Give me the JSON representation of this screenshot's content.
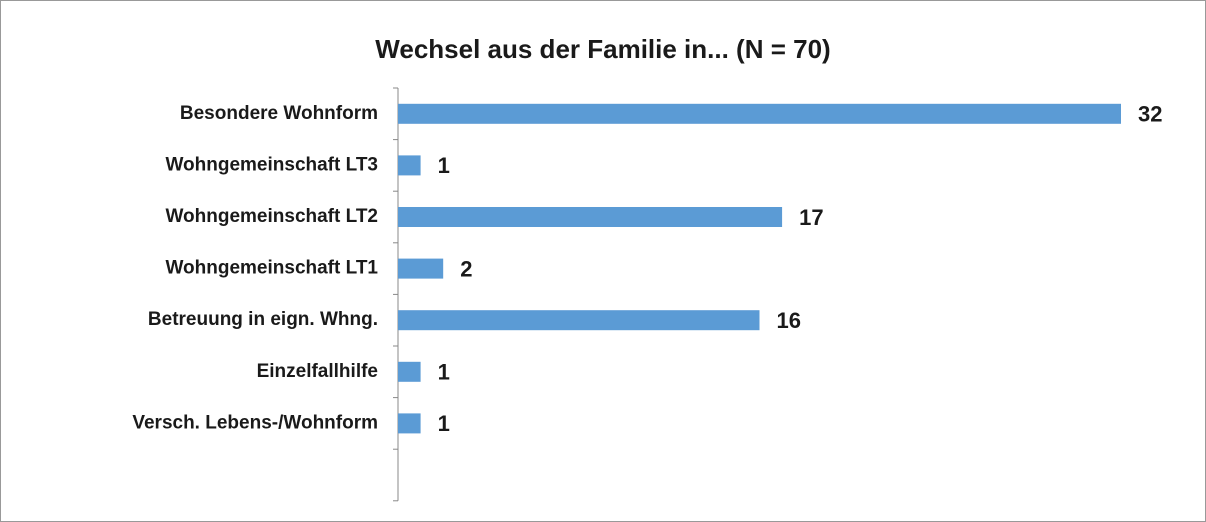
{
  "chart_data": {
    "type": "bar",
    "orientation": "horizontal",
    "title": "Wechsel aus der Familie in... (N = 70)",
    "categories": [
      "Besondere Wohnform",
      "Wohngemeinschaft LT3",
      "Wohngemeinschaft LT2",
      "Wohngemeinschaft LT1",
      "Betreuung in eign. Whng.",
      "Einzelfallhilfe",
      "Versch. Lebens-/Wohnform",
      null
    ],
    "values": [
      32,
      1,
      17,
      2,
      16,
      1,
      1,
      null
    ],
    "color": "#5b9bd5"
  }
}
